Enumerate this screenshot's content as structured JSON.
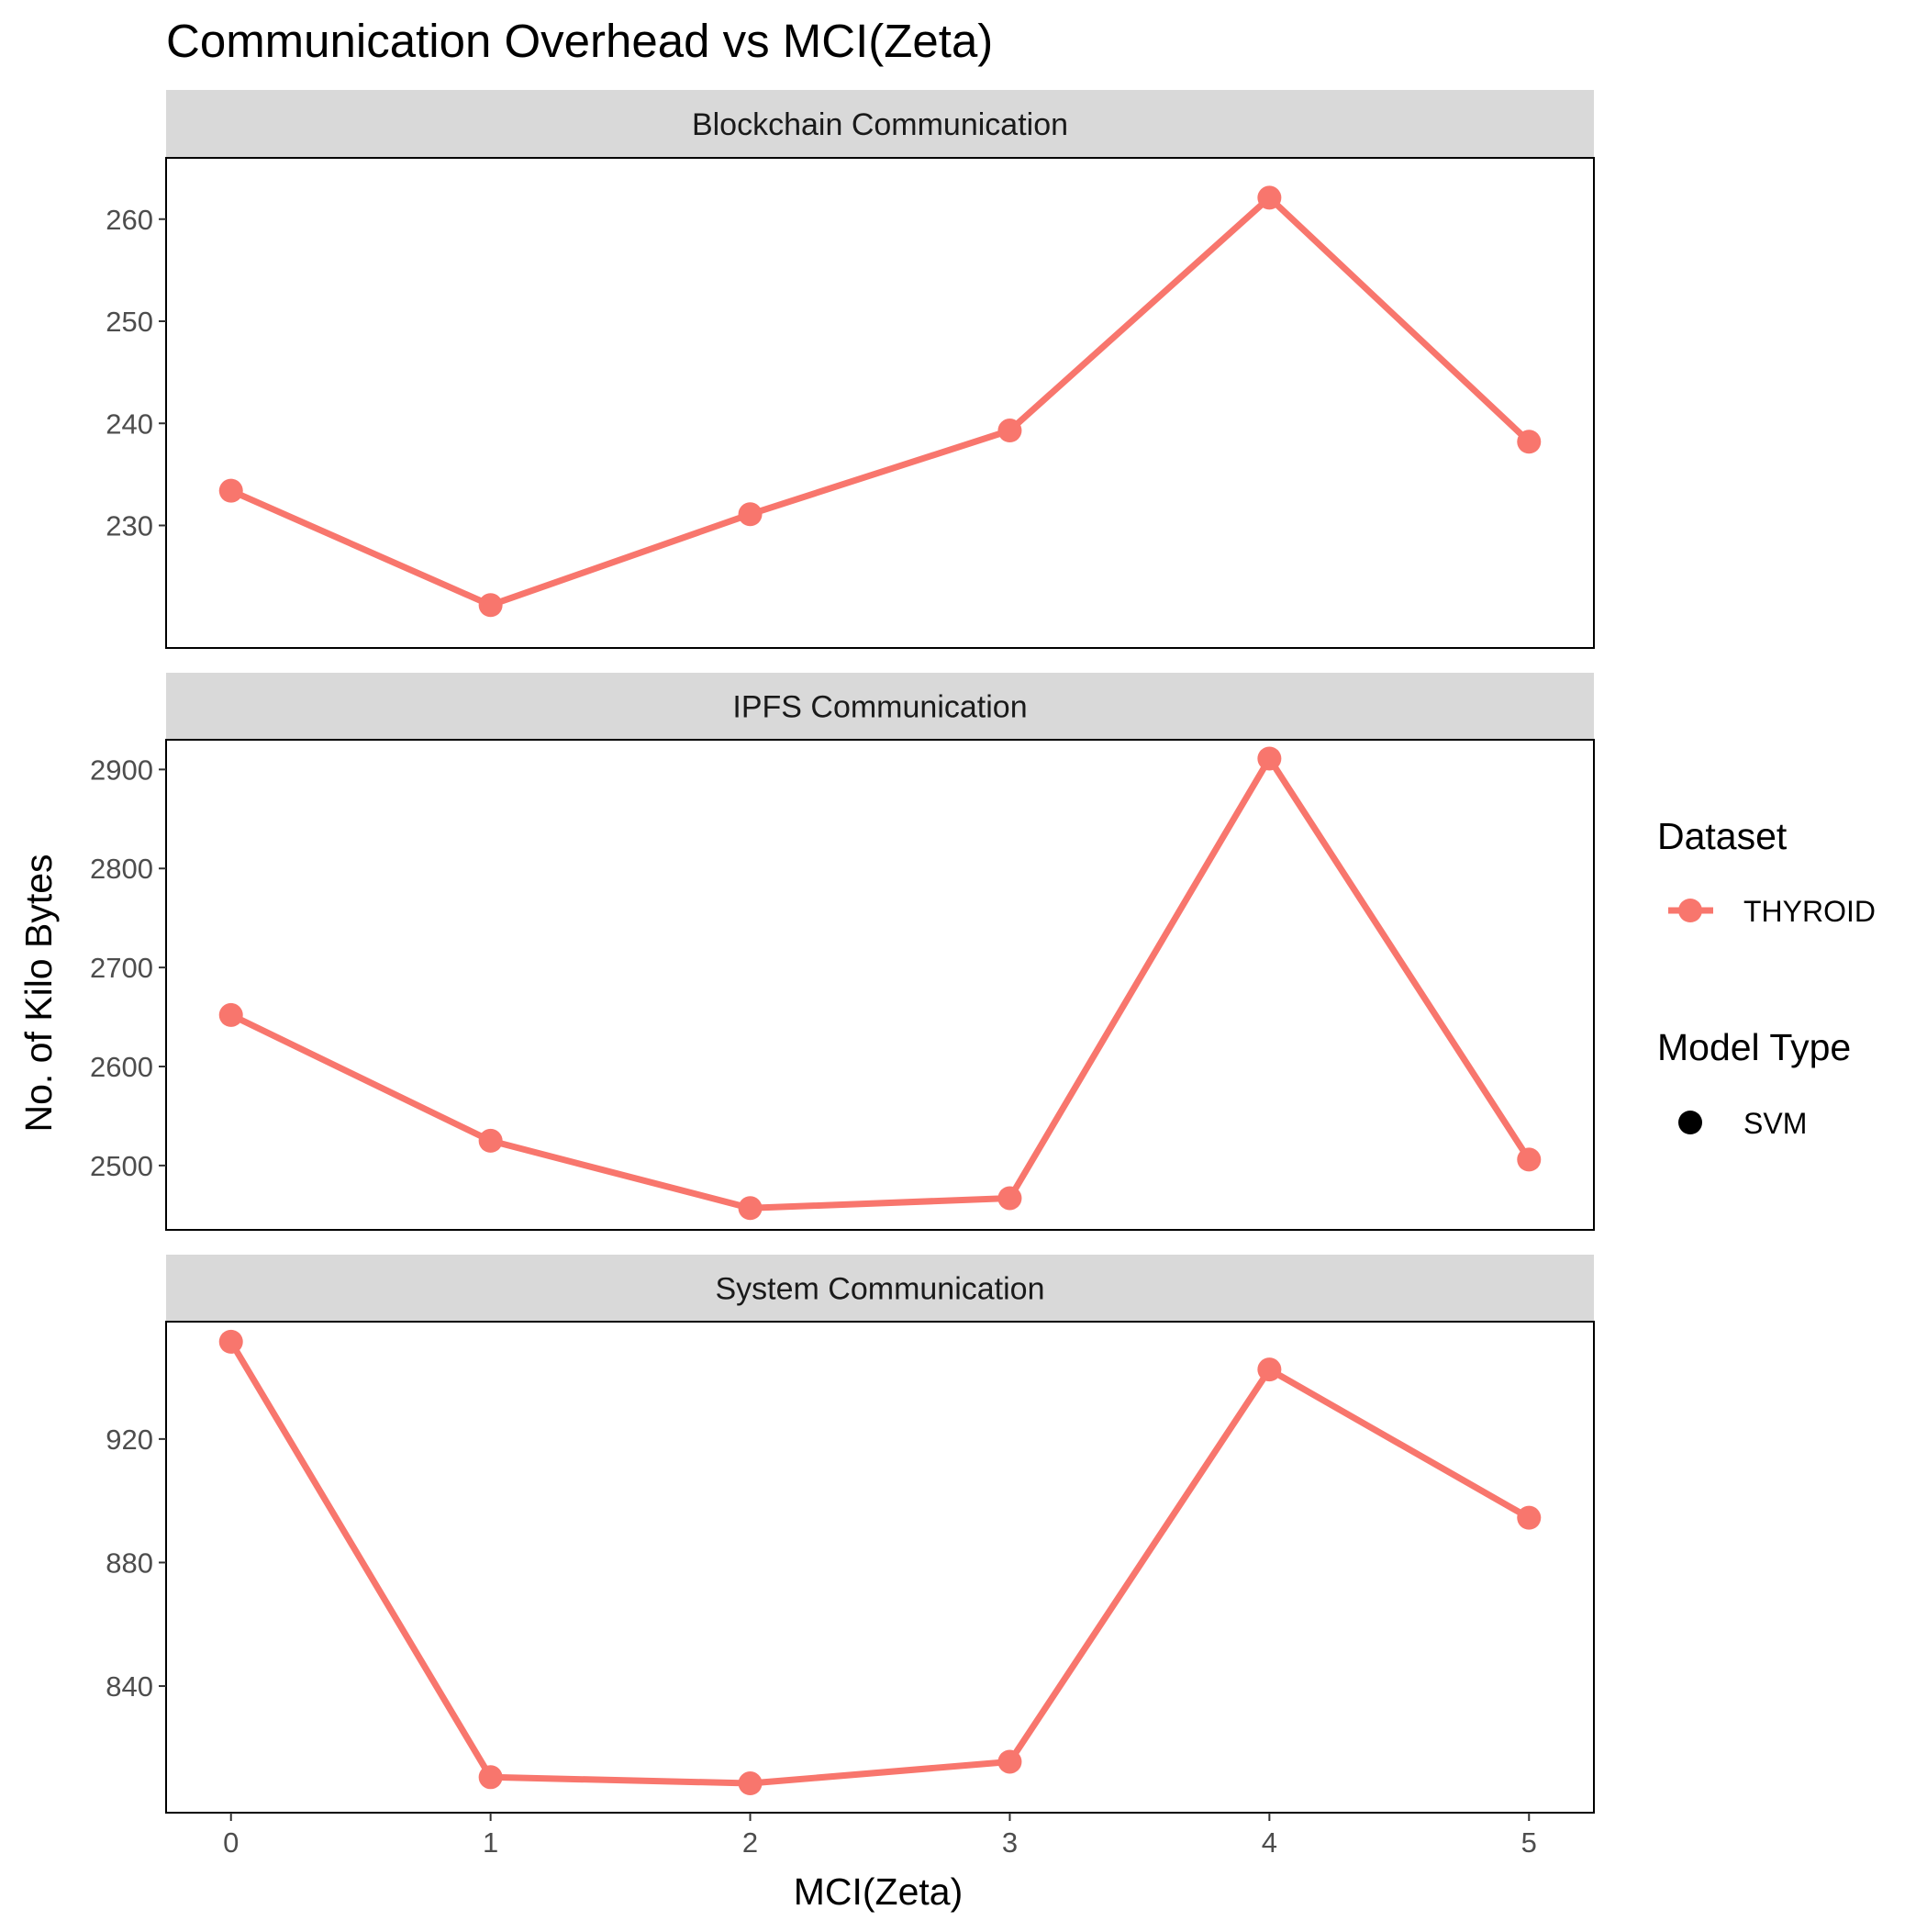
{
  "chart_data": {
    "type": "line",
    "title": "Communication Overhead vs MCI(Zeta)",
    "xlabel": "MCI(Zeta)",
    "ylabel": "No. of Kilo Bytes",
    "x": [
      0,
      1,
      2,
      3,
      4,
      5
    ],
    "xlim": [
      -0.25,
      5.25
    ],
    "x_ticks": [
      "0",
      "1",
      "2",
      "3",
      "4",
      "5"
    ],
    "grid": false,
    "legend_position": "right",
    "panels": [
      {
        "strip_label": "Blockchain Communication",
        "ylim": [
          218,
          266
        ],
        "y_ticks": [
          230,
          240,
          250,
          260
        ],
        "series": [
          {
            "name": "THYROID",
            "model": "SVM",
            "color": "#F8766D",
            "values": [
              233.4,
              222.2,
              231.1,
              239.3,
              262.1,
              238.2
            ]
          }
        ]
      },
      {
        "strip_label": "IPFS Communication",
        "ylim": [
          2435,
          2930
        ],
        "y_ticks": [
          2500,
          2600,
          2700,
          2800,
          2900
        ],
        "series": [
          {
            "name": "THYROID",
            "model": "SVM",
            "color": "#F8766D",
            "values": [
              2652,
              2525,
              2457,
              2467,
              2911,
              2506
            ]
          }
        ]
      },
      {
        "strip_label": "System Communication",
        "ylim": [
          799,
          958
        ],
        "y_ticks": [
          840,
          880,
          920
        ],
        "series": [
          {
            "name": "THYROID",
            "model": "SVM",
            "color": "#F8766D",
            "values": [
              951.5,
              810.5,
              808.5,
              815.5,
              942.5,
              894.5
            ]
          }
        ]
      }
    ],
    "legend": [
      {
        "title": "Dataset",
        "items": [
          {
            "label": "THYROID",
            "color": "#F8766D",
            "style": "line-point"
          }
        ]
      },
      {
        "title": "Model Type",
        "items": [
          {
            "label": "SVM",
            "color": "#000000",
            "style": "point"
          }
        ]
      }
    ]
  }
}
